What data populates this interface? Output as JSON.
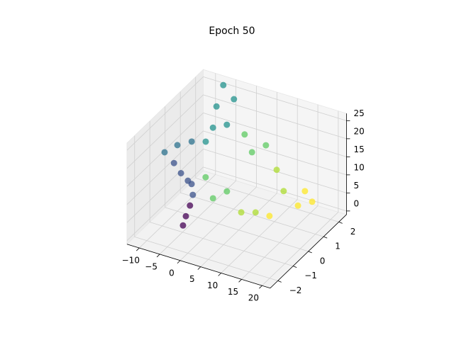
{
  "chart_data": {
    "type": "scatter3d",
    "title": "Epoch 50",
    "xlim": [
      -13,
      22
    ],
    "ylim": [
      -2.5,
      2.5
    ],
    "zlim": [
      -1,
      27
    ],
    "xticks": [
      {
        "value": -10,
        "label": "−10"
      },
      {
        "value": -5,
        "label": "−5"
      },
      0,
      5,
      10,
      15,
      20
    ],
    "yticks": [
      {
        "value": -2,
        "label": "−2"
      },
      {
        "value": -1,
        "label": "−1"
      },
      0,
      1,
      2
    ],
    "zticks": [
      0,
      5,
      10,
      15,
      20,
      25
    ],
    "grid": true,
    "series": [
      {
        "color": "#440154",
        "x": [
          -4.9,
          -4.2,
          -3.2
        ],
        "y": [
          -1,
          -1,
          -1
        ],
        "z": [
          0.9,
          3.7,
          7.0
        ]
      },
      {
        "color": "#3b528b",
        "x": [
          -2.5,
          -2.8,
          -3.7,
          -5.4,
          -7.1
        ],
        "y": [
          -1,
          -1,
          -1,
          -1,
          -1
        ],
        "z": [
          10.2,
          13.1,
          13.7,
          15.2,
          17.4
        ]
      },
      {
        "color": "#2c728e",
        "x": [
          -9.4,
          -10.0,
          -6.5
        ],
        "y": [
          -1,
          0,
          0
        ],
        "z": [
          19.6,
          17.3,
          19.5
        ]
      },
      {
        "color": "#21918c",
        "x": [
          -6.8,
          -6.9,
          -7.9,
          -8.1,
          -5.5,
          -3.5
        ],
        "y": [
          1,
          1.5,
          2,
          2.5,
          2.5,
          1.5
        ],
        "z": [
          15.3,
          17.1,
          20.6,
          24.4,
          21.4,
          19.1
        ]
      },
      {
        "color": "#5ec962",
        "x": [
          2.7,
          4.5,
          7.9,
          -3.1,
          -1.3,
          2.1
        ],
        "y": [
          1,
          1,
          1,
          0,
          0,
          0
        ],
        "z": [
          20.6,
          16.3,
          19.4,
          10.8,
          5.6,
          8.7
        ]
      },
      {
        "color": "#addc30",
        "x": [
          12.4,
          14.1,
          9.1,
          5.6
        ],
        "y": [
          0.5,
          0.5,
          0,
          0
        ],
        "z": [
          16.2,
          10.9,
          5.3,
          4.1
        ]
      },
      {
        "color": "#fde725",
        "x": [
          19.3,
          19.2,
          17.6,
          12.5
        ],
        "y": [
          0.5,
          1,
          0.5,
          0
        ],
        "z": [
          12.7,
          7.7,
          8.1,
          5.5
        ]
      }
    ]
  }
}
